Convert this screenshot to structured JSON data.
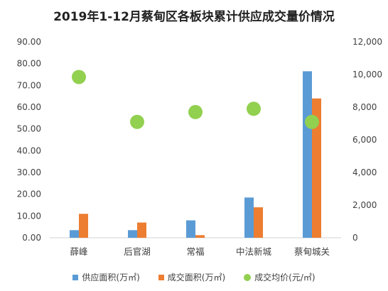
{
  "chart_data": {
    "type": "bar",
    "title": "2019年1-12月蔡甸区各板块累计供应成交量价情况",
    "categories": [
      "薛峰",
      "后官湖",
      "常福",
      "中法新城",
      "蔡甸城关"
    ],
    "ylim_left": [
      0,
      90
    ],
    "ylim_right": [
      0,
      12000
    ],
    "y_ticks_left": [
      "0.00",
      "10.00",
      "20.00",
      "30.00",
      "40.00",
      "50.00",
      "60.00",
      "70.00",
      "80.00",
      "90.00"
    ],
    "y_ticks_right": [
      "0",
      "2,000",
      "4,000",
      "6,000",
      "8,000",
      "10,000",
      "12,000"
    ],
    "series": [
      {
        "name": "供应面积(万㎡)",
        "type": "bar",
        "axis": "left",
        "color": "#5B9BD5",
        "values": [
          3.5,
          3.5,
          8.0,
          18.5,
          76.5
        ]
      },
      {
        "name": "成交面积(万㎡)",
        "type": "bar",
        "axis": "left",
        "color": "#ED7D31",
        "values": [
          11.0,
          7.0,
          1.2,
          14.0,
          64.0
        ]
      },
      {
        "name": "成交均价(元/㎡)",
        "type": "scatter",
        "axis": "right",
        "color": "#92D050",
        "values": [
          9850,
          7100,
          7700,
          7900,
          7100
        ]
      }
    ],
    "grid": false,
    "legend_position": "bottom"
  }
}
